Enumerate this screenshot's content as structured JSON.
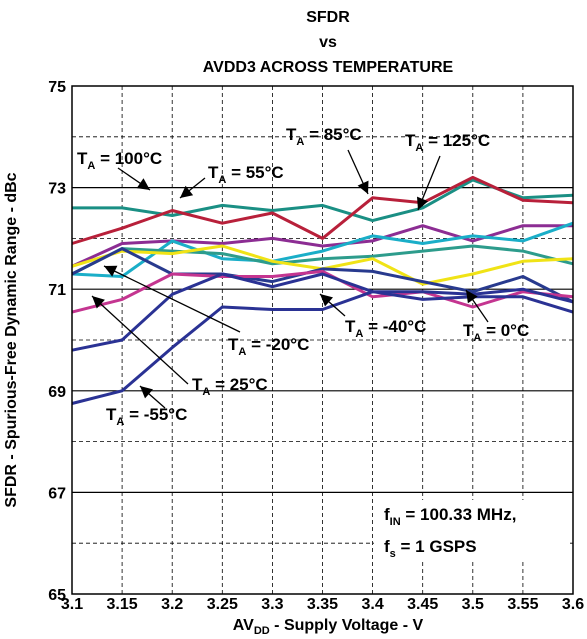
{
  "chart_data": {
    "type": "line",
    "title_lines": [
      "SFDR",
      "vs",
      "AVDD3 ACROSS TEMPERATURE"
    ],
    "xlabel": {
      "main": "AV",
      "sub": "DD",
      "rest": " - Supply Voltage - V"
    },
    "ylabel": "SFDR - Spurious-Free Dynamic Range - dBc",
    "xlim": [
      3.1,
      3.6
    ],
    "ylim": [
      65,
      75
    ],
    "x_ticks": [
      "3.1",
      "3.15",
      "3.2",
      "3.25",
      "3.3",
      "3.35",
      "3.4",
      "3.45",
      "3.5",
      "3.55",
      "3.6"
    ],
    "y_ticks": [
      "65",
      "67",
      "69",
      "71",
      "73",
      "75"
    ],
    "grid": true,
    "x": [
      3.1,
      3.15,
      3.2,
      3.25,
      3.3,
      3.35,
      3.4,
      3.45,
      3.5,
      3.55,
      3.6
    ],
    "series": [
      {
        "name": "T_A = 85°C",
        "color": "#1a8f84",
        "values": [
          72.6,
          72.6,
          72.45,
          72.65,
          72.55,
          72.65,
          72.35,
          72.6,
          73.15,
          72.8,
          72.85
        ]
      },
      {
        "name": "T_A = 125°C",
        "color": "#b8203a",
        "values": [
          71.9,
          72.2,
          72.55,
          72.3,
          72.5,
          72.0,
          72.8,
          72.7,
          73.2,
          72.75,
          72.7
        ]
      },
      {
        "name": "T_A = 55°C",
        "color": "#8c2d93",
        "values": [
          71.45,
          71.9,
          71.95,
          71.9,
          72.0,
          71.85,
          71.95,
          72.25,
          71.95,
          72.25,
          72.25
        ]
      },
      {
        "name": "T_A = 100°C",
        "color": "#1aaec8",
        "values": [
          71.3,
          71.25,
          71.95,
          71.6,
          71.55,
          71.75,
          72.05,
          71.9,
          72.05,
          71.95,
          72.3
        ]
      },
      {
        "name": "T_A = 0°C",
        "color": "#2d9c8c",
        "values": [
          71.3,
          71.8,
          71.75,
          71.7,
          71.5,
          71.6,
          71.65,
          71.75,
          71.85,
          71.75,
          71.5
        ]
      },
      {
        "name": "T_A = -20°C",
        "color": "#f0e316",
        "values": [
          71.45,
          71.75,
          71.7,
          71.85,
          71.55,
          71.4,
          71.6,
          71.1,
          71.3,
          71.55,
          71.6
        ]
      },
      {
        "name": "T_A = -40°C",
        "color": "#283a8e",
        "values": [
          71.3,
          71.8,
          71.3,
          71.3,
          71.15,
          71.4,
          71.35,
          71.15,
          70.95,
          71.25,
          70.75
        ]
      },
      {
        "name": "T_A = 25°C",
        "color": "#c43590",
        "values": [
          70.55,
          70.8,
          71.3,
          71.25,
          71.25,
          71.35,
          70.85,
          70.95,
          70.65,
          70.95,
          70.85
        ]
      },
      {
        "name": "T_A = -55°C",
        "color": "#2a3294",
        "values": [
          68.75,
          69.0,
          69.85,
          70.65,
          70.6,
          70.6,
          70.95,
          70.8,
          70.85,
          70.85,
          70.55
        ]
      },
      {
        "name": "",
        "color": "#2a3294",
        "values": [
          69.8,
          70.0,
          70.9,
          71.3,
          71.05,
          71.3,
          70.95,
          70.95,
          70.9,
          71.0,
          70.75
        ]
      }
    ],
    "annotations": [
      {
        "id": "ta-100",
        "T": "T",
        "A": "A",
        "rest": " = 100°C"
      },
      {
        "id": "ta-55",
        "T": "T",
        "A": "A",
        "rest": " = 55°C"
      },
      {
        "id": "ta-85",
        "T": "T",
        "A": "A",
        "rest": " = 85°C"
      },
      {
        "id": "ta-125",
        "T": "T",
        "A": "A",
        "rest": " = 125°C"
      },
      {
        "id": "ta-m20",
        "T": "T",
        "A": "A",
        "rest": " = -20°C"
      },
      {
        "id": "ta-m40",
        "T": "T",
        "A": "A",
        "rest": " = -40°C"
      },
      {
        "id": "ta-0",
        "T": "T",
        "A": "A",
        "rest": " = 0°C"
      },
      {
        "id": "ta-25",
        "T": "T",
        "A": "A",
        "rest": " = 25°C"
      },
      {
        "id": "ta-m55",
        "T": "T",
        "A": "A",
        "rest": " = -55°C"
      }
    ],
    "conditions": [
      {
        "main": "f",
        "sub": "IN",
        "rest": " = 100.33 MHz,"
      },
      {
        "main": "f",
        "sub": "s",
        "rest": " = 1 GSPS"
      }
    ]
  }
}
